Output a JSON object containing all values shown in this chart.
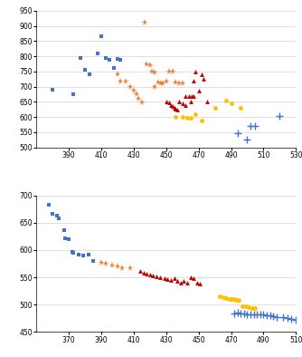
{
  "chart1": {
    "xlim": [
      370,
      530
    ],
    "ylim": [
      500,
      950
    ],
    "xticks": [
      390,
      410,
      430,
      450,
      470,
      490,
      510,
      530
    ],
    "yticks": [
      500,
      550,
      600,
      650,
      700,
      750,
      800,
      850,
      900,
      950
    ],
    "blue_squares": [
      [
        380,
        690
      ],
      [
        393,
        675
      ],
      [
        397,
        795
      ],
      [
        400,
        757
      ],
      [
        403,
        742
      ],
      [
        408,
        808
      ],
      [
        410,
        865
      ],
      [
        413,
        793
      ],
      [
        415,
        789
      ],
      [
        418,
        762
      ],
      [
        420,
        790
      ],
      [
        422,
        788
      ]
    ],
    "orange_stars": [
      [
        420,
        740
      ],
      [
        422,
        718
      ],
      [
        425,
        717
      ],
      [
        428,
        700
      ],
      [
        430,
        688
      ],
      [
        432,
        675
      ],
      [
        433,
        660
      ],
      [
        435,
        648
      ],
      [
        437,
        910
      ],
      [
        438,
        775
      ],
      [
        440,
        770
      ],
      [
        441,
        750
      ],
      [
        443,
        748
      ],
      [
        443,
        700
      ],
      [
        445,
        715
      ],
      [
        447,
        712
      ],
      [
        448,
        710
      ],
      [
        450,
        716
      ],
      [
        452,
        750
      ],
      [
        454,
        750
      ],
      [
        456,
        715
      ],
      [
        458,
        712
      ],
      [
        460,
        710
      ]
    ],
    "red_triangles": [
      [
        450,
        650
      ],
      [
        452,
        648
      ],
      [
        453,
        640
      ],
      [
        454,
        635
      ],
      [
        455,
        630
      ],
      [
        456,
        628
      ],
      [
        457,
        625
      ],
      [
        458,
        650
      ],
      [
        460,
        645
      ],
      [
        462,
        640
      ],
      [
        462,
        670
      ],
      [
        464,
        670
      ],
      [
        465,
        650
      ],
      [
        466,
        670
      ],
      [
        467,
        670
      ],
      [
        467,
        720
      ],
      [
        468,
        750
      ],
      [
        470,
        688
      ],
      [
        472,
        740
      ],
      [
        473,
        725
      ],
      [
        475,
        650
      ]
    ],
    "yellow_circles": [
      [
        456,
        600
      ],
      [
        460,
        600
      ],
      [
        463,
        598
      ],
      [
        465,
        597
      ],
      [
        468,
        610
      ],
      [
        472,
        590
      ],
      [
        480,
        630
      ],
      [
        487,
        655
      ],
      [
        490,
        645
      ],
      [
        496,
        630
      ]
    ],
    "blue_crosses": [
      [
        494,
        548
      ],
      [
        500,
        525
      ],
      [
        502,
        572
      ],
      [
        505,
        570
      ],
      [
        520,
        605
      ]
    ]
  },
  "chart2": {
    "xlim": [
      350,
      510
    ],
    "ylim": [
      450,
      700
    ],
    "xticks": [
      370,
      390,
      410,
      430,
      450,
      470,
      490,
      510
    ],
    "yticks": [
      450,
      500,
      550,
      600,
      650,
      700
    ],
    "blue_squares": [
      [
        358,
        683
      ],
      [
        360,
        666
      ],
      [
        363,
        662
      ],
      [
        364,
        657
      ],
      [
        367,
        636
      ],
      [
        368,
        622
      ],
      [
        370,
        620
      ],
      [
        372,
        596
      ],
      [
        373,
        595
      ],
      [
        376,
        591
      ],
      [
        379,
        590
      ],
      [
        382,
        591
      ],
      [
        385,
        580
      ]
    ],
    "orange_stars": [
      [
        390,
        577
      ],
      [
        393,
        575
      ],
      [
        397,
        572
      ],
      [
        400,
        570
      ],
      [
        403,
        567
      ],
      [
        408,
        566
      ]
    ],
    "red_triangles": [
      [
        414,
        562
      ],
      [
        416,
        558
      ],
      [
        418,
        557
      ],
      [
        420,
        555
      ],
      [
        422,
        553
      ],
      [
        424,
        552
      ],
      [
        426,
        550
      ],
      [
        429,
        548
      ],
      [
        431,
        546
      ],
      [
        433,
        545
      ],
      [
        435,
        548
      ],
      [
        437,
        543
      ],
      [
        439,
        540
      ],
      [
        441,
        543
      ],
      [
        443,
        540
      ],
      [
        445,
        550
      ],
      [
        447,
        548
      ],
      [
        449,
        540
      ],
      [
        451,
        538
      ]
    ],
    "yellow_circles": [
      [
        463,
        516
      ],
      [
        465,
        513
      ],
      [
        467,
        512
      ],
      [
        469,
        511
      ],
      [
        470,
        510
      ],
      [
        472,
        510
      ],
      [
        473,
        509
      ],
      [
        475,
        508
      ],
      [
        477,
        497
      ],
      [
        479,
        497
      ],
      [
        481,
        495
      ],
      [
        483,
        494
      ],
      [
        485,
        493
      ]
    ],
    "blue_crosses": [
      [
        472,
        484
      ],
      [
        474,
        485
      ],
      [
        476,
        484
      ],
      [
        478,
        484
      ],
      [
        480,
        483
      ],
      [
        482,
        483
      ],
      [
        484,
        482
      ],
      [
        486,
        482
      ],
      [
        488,
        483
      ],
      [
        490,
        482
      ],
      [
        492,
        481
      ],
      [
        494,
        480
      ],
      [
        496,
        479
      ],
      [
        498,
        478
      ],
      [
        502,
        477
      ],
      [
        505,
        475
      ],
      [
        507,
        474
      ],
      [
        510,
        472
      ]
    ]
  },
  "colors": {
    "blue": "#4472C4",
    "orange": "#ED7D31",
    "red": "#C00000",
    "yellow": "#FFC000"
  },
  "bg_color": "#FFFFFF",
  "grid_color": "#D9D9D9"
}
